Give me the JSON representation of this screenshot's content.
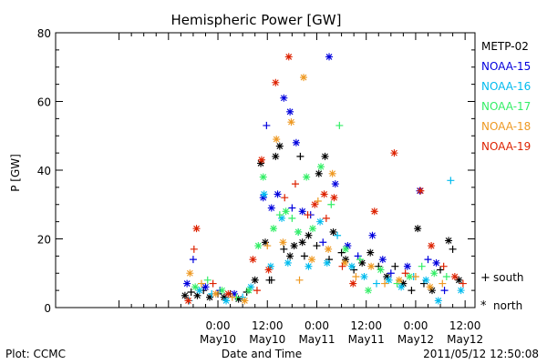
{
  "chart_data": {
    "type": "scatter",
    "title": "Hemispheric Power [GW]",
    "ylabel": "P [GW]",
    "xlabel": "Date and Time",
    "xunit": "hours since 2011-05-09 00:00 UT",
    "xlim": [
      -15.4,
      86.4
    ],
    "ylim": [
      0,
      80
    ],
    "yticks": [
      0,
      20,
      40,
      60,
      80
    ],
    "xticks": [
      {
        "x": 24,
        "time": "0:00",
        "date": "May10"
      },
      {
        "x": 36,
        "time": "12:00",
        "date": "May10"
      },
      {
        "x": 48,
        "time": "0:00",
        "date": "May11"
      },
      {
        "x": 60,
        "time": "12:00",
        "date": "May11"
      },
      {
        "x": 72,
        "time": "0:00",
        "date": "May12"
      },
      {
        "x": 84,
        "time": "12:00",
        "date": "May12"
      }
    ],
    "grid": false,
    "legend_position": "right",
    "marker_legend": [
      {
        "symbol": "+",
        "label": "south"
      },
      {
        "symbol": "*",
        "label": "north"
      }
    ],
    "series": [
      {
        "name": "METP-02",
        "color": "#000000",
        "points": [
          {
            "x": 16.0,
            "y": 3.5,
            "m": "*"
          },
          {
            "x": 17.5,
            "y": 4.5,
            "m": "+"
          },
          {
            "x": 19.0,
            "y": 3.5,
            "m": "*"
          },
          {
            "x": 20.5,
            "y": 5.0,
            "m": "+"
          },
          {
            "x": 22.0,
            "y": 3.0,
            "m": "*"
          },
          {
            "x": 24.0,
            "y": 4.0,
            "m": "+"
          },
          {
            "x": 25.5,
            "y": 3.0,
            "m": "*"
          },
          {
            "x": 27.0,
            "y": 4.0,
            "m": "+"
          },
          {
            "x": 29.0,
            "y": 2.5,
            "m": "*"
          },
          {
            "x": 31.0,
            "y": 4.5,
            "m": "+"
          },
          {
            "x": 33.0,
            "y": 8.0,
            "m": "*"
          },
          {
            "x": 34.4,
            "y": 42.0,
            "m": "*"
          },
          {
            "x": 35.5,
            "y": 19.0,
            "m": "*"
          },
          {
            "x": 36.5,
            "y": 8.0,
            "m": "+"
          },
          {
            "x": 37.0,
            "y": 8.0,
            "m": "+"
          },
          {
            "x": 38.0,
            "y": 44.0,
            "m": "*"
          },
          {
            "x": 39.0,
            "y": 47.0,
            "m": "*"
          },
          {
            "x": 40.0,
            "y": 17.0,
            "m": "+"
          },
          {
            "x": 41.5,
            "y": 15.0,
            "m": "*"
          },
          {
            "x": 42.5,
            "y": 18.0,
            "m": "*"
          },
          {
            "x": 44.0,
            "y": 44.0,
            "m": "+"
          },
          {
            "x": 44.5,
            "y": 19.0,
            "m": "*"
          },
          {
            "x": 45.0,
            "y": 15.0,
            "m": "+"
          },
          {
            "x": 46.0,
            "y": 21.0,
            "m": "*"
          },
          {
            "x": 48.0,
            "y": 18.0,
            "m": "+"
          },
          {
            "x": 48.5,
            "y": 39.0,
            "m": "*"
          },
          {
            "x": 50.0,
            "y": 44.0,
            "m": "*"
          },
          {
            "x": 51.0,
            "y": 14.0,
            "m": "+"
          },
          {
            "x": 52.0,
            "y": 22.0,
            "m": "*"
          },
          {
            "x": 54.0,
            "y": 16.0,
            "m": "+"
          },
          {
            "x": 55.0,
            "y": 14.0,
            "m": "*"
          },
          {
            "x": 57.0,
            "y": 11.0,
            "m": "+"
          },
          {
            "x": 59.0,
            "y": 13.0,
            "m": "*"
          },
          {
            "x": 61.0,
            "y": 16.0,
            "m": "*"
          },
          {
            "x": 63.0,
            "y": 12.0,
            "m": "+"
          },
          {
            "x": 65.0,
            "y": 9.0,
            "m": "*"
          },
          {
            "x": 67.0,
            "y": 12.0,
            "m": "+"
          },
          {
            "x": 69.0,
            "y": 7.0,
            "m": "*"
          },
          {
            "x": 71.0,
            "y": 5.0,
            "m": "+"
          },
          {
            "x": 72.5,
            "y": 23.0,
            "m": "*"
          },
          {
            "x": 74.0,
            "y": 7.0,
            "m": "+"
          },
          {
            "x": 76.0,
            "y": 5.0,
            "m": "*"
          },
          {
            "x": 78.0,
            "y": 11.0,
            "m": "+"
          },
          {
            "x": 80.0,
            "y": 19.5,
            "m": "*"
          },
          {
            "x": 81.0,
            "y": 17.0,
            "m": "+"
          },
          {
            "x": 82.5,
            "y": 8.0,
            "m": "*"
          }
        ]
      },
      {
        "name": "NOAA-15",
        "color": "#0000dd",
        "points": [
          {
            "x": 16.5,
            "y": 7.0,
            "m": "*"
          },
          {
            "x": 18.0,
            "y": 14.0,
            "m": "+"
          },
          {
            "x": 21.0,
            "y": 6.0,
            "m": "*"
          },
          {
            "x": 24.5,
            "y": 5.0,
            "m": "+"
          },
          {
            "x": 28.0,
            "y": 4.0,
            "m": "*"
          },
          {
            "x": 35.0,
            "y": 32.0,
            "m": "*"
          },
          {
            "x": 35.8,
            "y": 53.0,
            "m": "+"
          },
          {
            "x": 37.0,
            "y": 29.0,
            "m": "*"
          },
          {
            "x": 38.5,
            "y": 33.0,
            "m": "*"
          },
          {
            "x": 40.0,
            "y": 61.0,
            "m": "*"
          },
          {
            "x": 41.5,
            "y": 57.0,
            "m": "*"
          },
          {
            "x": 42.0,
            "y": 29.0,
            "m": "+"
          },
          {
            "x": 43.0,
            "y": 48.0,
            "m": "*"
          },
          {
            "x": 44.5,
            "y": 28.0,
            "m": "*"
          },
          {
            "x": 46.5,
            "y": 27.0,
            "m": "+"
          },
          {
            "x": 49.5,
            "y": 19.0,
            "m": "+"
          },
          {
            "x": 51.0,
            "y": 73.0,
            "m": "*"
          },
          {
            "x": 52.5,
            "y": 36.0,
            "m": "*"
          },
          {
            "x": 55.5,
            "y": 18.0,
            "m": "*"
          },
          {
            "x": 58.0,
            "y": 15.0,
            "m": "+"
          },
          {
            "x": 61.5,
            "y": 21.0,
            "m": "*"
          },
          {
            "x": 64.0,
            "y": 14.0,
            "m": "*"
          },
          {
            "x": 66.0,
            "y": 10.0,
            "m": "+"
          },
          {
            "x": 70.0,
            "y": 12.0,
            "m": "*"
          },
          {
            "x": 73.0,
            "y": 34.0,
            "m": "*"
          },
          {
            "x": 75.0,
            "y": 14.0,
            "m": "+"
          },
          {
            "x": 77.0,
            "y": 13.0,
            "m": "*"
          },
          {
            "x": 79.0,
            "y": 5.0,
            "m": "+"
          }
        ]
      },
      {
        "name": "NOAA-16",
        "color": "#00bbee",
        "points": [
          {
            "x": 17.0,
            "y": 2.0,
            "m": "+"
          },
          {
            "x": 19.5,
            "y": 5.0,
            "m": "*"
          },
          {
            "x": 22.5,
            "y": 4.0,
            "m": "+"
          },
          {
            "x": 26.0,
            "y": 2.0,
            "m": "*"
          },
          {
            "x": 30.0,
            "y": 3.0,
            "m": "+"
          },
          {
            "x": 32.0,
            "y": 6.0,
            "m": "*"
          },
          {
            "x": 35.2,
            "y": 33.0,
            "m": "*"
          },
          {
            "x": 36.8,
            "y": 12.0,
            "m": "*"
          },
          {
            "x": 39.5,
            "y": 26.0,
            "m": "*"
          },
          {
            "x": 41.0,
            "y": 13.0,
            "m": "*"
          },
          {
            "x": 43.5,
            "y": 22.0,
            "m": "+"
          },
          {
            "x": 46.0,
            "y": 12.0,
            "m": "*"
          },
          {
            "x": 48.8,
            "y": 25.0,
            "m": "*"
          },
          {
            "x": 50.5,
            "y": 13.0,
            "m": "*"
          },
          {
            "x": 53.0,
            "y": 21.0,
            "m": "+"
          },
          {
            "x": 56.5,
            "y": 12.0,
            "m": "*"
          },
          {
            "x": 59.5,
            "y": 9.0,
            "m": "*"
          },
          {
            "x": 62.5,
            "y": 7.0,
            "m": "+"
          },
          {
            "x": 65.5,
            "y": 8.0,
            "m": "*"
          },
          {
            "x": 68.5,
            "y": 6.0,
            "m": "*"
          },
          {
            "x": 71.5,
            "y": 9.0,
            "m": "+"
          },
          {
            "x": 74.5,
            "y": 8.0,
            "m": "*"
          },
          {
            "x": 77.5,
            "y": 2.0,
            "m": "*"
          },
          {
            "x": 80.5,
            "y": 37.0,
            "m": "+"
          },
          {
            "x": 83.0,
            "y": 5.0,
            "m": "*"
          }
        ]
      },
      {
        "name": "NOAA-17",
        "color": "#33ee66",
        "points": [
          {
            "x": 18.5,
            "y": 6.0,
            "m": "*"
          },
          {
            "x": 21.5,
            "y": 8.0,
            "m": "+"
          },
          {
            "x": 25.0,
            "y": 5.0,
            "m": "*"
          },
          {
            "x": 28.5,
            "y": 3.0,
            "m": "+"
          },
          {
            "x": 31.5,
            "y": 5.0,
            "m": "*"
          },
          {
            "x": 33.8,
            "y": 18.0,
            "m": "*"
          },
          {
            "x": 35.0,
            "y": 38.0,
            "m": "*"
          },
          {
            "x": 37.5,
            "y": 23.0,
            "m": "*"
          },
          {
            "x": 39.0,
            "y": 27.0,
            "m": "+"
          },
          {
            "x": 40.5,
            "y": 28.0,
            "m": "*"
          },
          {
            "x": 42.0,
            "y": 26.0,
            "m": "+"
          },
          {
            "x": 43.5,
            "y": 22.0,
            "m": "*"
          },
          {
            "x": 45.5,
            "y": 38.0,
            "m": "*"
          },
          {
            "x": 47.0,
            "y": 23.0,
            "m": "*"
          },
          {
            "x": 49.0,
            "y": 41.0,
            "m": "*"
          },
          {
            "x": 51.5,
            "y": 30.0,
            "m": "+"
          },
          {
            "x": 53.5,
            "y": 53.0,
            "m": "+"
          },
          {
            "x": 55.0,
            "y": 17.0,
            "m": "*"
          },
          {
            "x": 58.5,
            "y": 14.0,
            "m": "+"
          },
          {
            "x": 60.5,
            "y": 5.0,
            "m": "*"
          },
          {
            "x": 63.5,
            "y": 11.0,
            "m": "*"
          },
          {
            "x": 67.5,
            "y": 7.0,
            "m": "+"
          },
          {
            "x": 70.5,
            "y": 9.0,
            "m": "*"
          },
          {
            "x": 73.5,
            "y": 12.0,
            "m": "+"
          },
          {
            "x": 76.5,
            "y": 10.0,
            "m": "*"
          },
          {
            "x": 79.5,
            "y": 9.0,
            "m": "+"
          }
        ]
      },
      {
        "name": "NOAA-18",
        "color": "#ee9922",
        "points": [
          {
            "x": 17.2,
            "y": 10.0,
            "m": "*"
          },
          {
            "x": 20.0,
            "y": 7.0,
            "m": "+"
          },
          {
            "x": 23.5,
            "y": 4.0,
            "m": "*"
          },
          {
            "x": 27.5,
            "y": 3.0,
            "m": "+"
          },
          {
            "x": 30.5,
            "y": 2.0,
            "m": "*"
          },
          {
            "x": 36.0,
            "y": 18.0,
            "m": "+"
          },
          {
            "x": 38.2,
            "y": 49.0,
            "m": "*"
          },
          {
            "x": 39.8,
            "y": 19.0,
            "m": "*"
          },
          {
            "x": 41.8,
            "y": 54.0,
            "m": "*"
          },
          {
            "x": 43.8,
            "y": 8.0,
            "m": "+"
          },
          {
            "x": 44.8,
            "y": 67.0,
            "m": "*"
          },
          {
            "x": 46.8,
            "y": 14.0,
            "m": "*"
          },
          {
            "x": 48.3,
            "y": 31.0,
            "m": "+"
          },
          {
            "x": 50.8,
            "y": 17.0,
            "m": "*"
          },
          {
            "x": 51.8,
            "y": 39.0,
            "m": "*"
          },
          {
            "x": 54.8,
            "y": 13.0,
            "m": "*"
          },
          {
            "x": 57.5,
            "y": 9.0,
            "m": "+"
          },
          {
            "x": 61.2,
            "y": 12.0,
            "m": "*"
          },
          {
            "x": 64.5,
            "y": 7.0,
            "m": "+"
          },
          {
            "x": 68.0,
            "y": 8.0,
            "m": "*"
          },
          {
            "x": 72.0,
            "y": 9.0,
            "m": "+"
          },
          {
            "x": 75.5,
            "y": 6.0,
            "m": "*"
          },
          {
            "x": 78.5,
            "y": 7.0,
            "m": "+"
          }
        ]
      },
      {
        "name": "NOAA-19",
        "color": "#dd2200",
        "points": [
          {
            "x": 16.8,
            "y": 2.0,
            "m": "*"
          },
          {
            "x": 18.2,
            "y": 17.0,
            "m": "+"
          },
          {
            "x": 18.8,
            "y": 23.0,
            "m": "*"
          },
          {
            "x": 22.8,
            "y": 7.0,
            "m": "+"
          },
          {
            "x": 26.5,
            "y": 4.0,
            "m": "*"
          },
          {
            "x": 32.5,
            "y": 14.0,
            "m": "*"
          },
          {
            "x": 33.5,
            "y": 5.0,
            "m": "+"
          },
          {
            "x": 34.6,
            "y": 43.0,
            "m": "*"
          },
          {
            "x": 36.3,
            "y": 11.0,
            "m": "*"
          },
          {
            "x": 38.0,
            "y": 65.5,
            "m": "*"
          },
          {
            "x": 40.2,
            "y": 32.0,
            "m": "+"
          },
          {
            "x": 41.2,
            "y": 73.0,
            "m": "*"
          },
          {
            "x": 42.8,
            "y": 36.0,
            "m": "+"
          },
          {
            "x": 45.8,
            "y": 27.0,
            "m": "+"
          },
          {
            "x": 47.5,
            "y": 30.0,
            "m": "*"
          },
          {
            "x": 49.8,
            "y": 33.0,
            "m": "*"
          },
          {
            "x": 50.3,
            "y": 26.0,
            "m": "+"
          },
          {
            "x": 52.2,
            "y": 32.0,
            "m": "*"
          },
          {
            "x": 54.2,
            "y": 12.0,
            "m": "+"
          },
          {
            "x": 56.8,
            "y": 7.0,
            "m": "*"
          },
          {
            "x": 62.0,
            "y": 28.0,
            "m": "*"
          },
          {
            "x": 66.8,
            "y": 45.0,
            "m": "*"
          },
          {
            "x": 69.5,
            "y": 10.0,
            "m": "+"
          },
          {
            "x": 73.2,
            "y": 34.0,
            "m": "*"
          },
          {
            "x": 75.8,
            "y": 18.0,
            "m": "*"
          },
          {
            "x": 78.8,
            "y": 12.0,
            "m": "+"
          },
          {
            "x": 81.5,
            "y": 9.0,
            "m": "*"
          },
          {
            "x": 83.5,
            "y": 7.0,
            "m": "+"
          }
        ]
      }
    ]
  },
  "footer": {
    "plot_label": "Plot: CCMC",
    "timestamp": "2011/05/12 12:50:08"
  }
}
